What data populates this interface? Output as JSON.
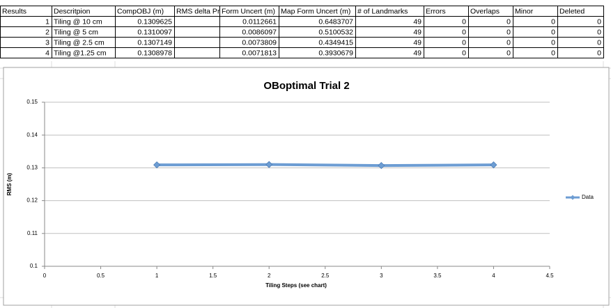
{
  "table": {
    "header": [
      "Results",
      "Descritpion",
      "CompOBJ (m)",
      "RMS delta Pr",
      "Form Uncert (m)",
      "Map Form Uncert (m)",
      "# of Landmarks",
      "Errors",
      "Overlaps",
      "Minor",
      "Deleted"
    ],
    "rows": [
      [
        "1",
        "Tiling @ 10 cm",
        "0.1309625",
        null,
        "0.0112661",
        "0.6483707",
        "49",
        "0",
        "0",
        "0",
        "0"
      ],
      [
        "2",
        "Tiling @ 5 cm",
        "0.1310097",
        null,
        "0.0086097",
        "0.5100532",
        "49",
        "0",
        "0",
        "0",
        "0"
      ],
      [
        "3",
        "Tiling @ 2.5 cm",
        "0.1307149",
        null,
        "0.0073809",
        "0.4349415",
        "49",
        "0",
        "0",
        "0",
        "0"
      ],
      [
        "4",
        "Tiling @1.25 cm",
        "0.1308978",
        null,
        "0.0071813",
        "0.3930679",
        "49",
        "0",
        "0",
        "0",
        "0"
      ]
    ]
  },
  "chart_data": {
    "type": "line",
    "title": "OBoptimal Trial 2",
    "x_label": "Tiling Steps (see chart)",
    "y_label": "RMS (m)",
    "x": [
      1,
      2,
      3,
      4
    ],
    "series": [
      {
        "name": "Data",
        "color": "#6d9dd3",
        "values": [
          0.1309,
          0.131,
          0.1307,
          0.1309
        ]
      }
    ],
    "xlim": [
      0,
      4.5
    ],
    "xticks": [
      0,
      0.5,
      1,
      1.5,
      2,
      2.5,
      3,
      3.5,
      4,
      4.5
    ],
    "ylim": [
      0.1,
      0.15
    ],
    "yticks": [
      0.1,
      0.11,
      0.12,
      0.13,
      0.14,
      0.15
    ],
    "grid": true,
    "legend": "right"
  }
}
